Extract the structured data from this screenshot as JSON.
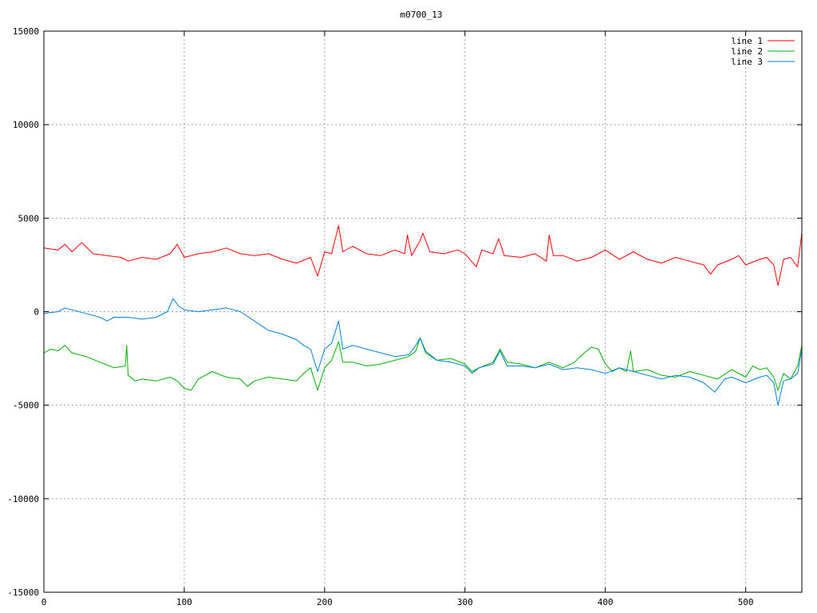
{
  "chart_data": {
    "type": "line",
    "title": "m0700_13",
    "xlabel": "",
    "ylabel": "",
    "xlim": [
      0,
      540
    ],
    "ylim": [
      -15000,
      15000
    ],
    "xticks": [
      0,
      100,
      200,
      300,
      400,
      500
    ],
    "yticks": [
      -15000,
      -10000,
      -5000,
      0,
      5000,
      10000,
      15000
    ],
    "grid": true,
    "legend_position": "top-right",
    "series": [
      {
        "name": "line 1",
        "color": "#ff0000",
        "points": [
          [
            0,
            3400
          ],
          [
            10,
            3300
          ],
          [
            15,
            3600
          ],
          [
            20,
            3200
          ],
          [
            27,
            3700
          ],
          [
            35,
            3100
          ],
          [
            45,
            3000
          ],
          [
            55,
            2900
          ],
          [
            60,
            2700
          ],
          [
            70,
            2900
          ],
          [
            80,
            2800
          ],
          [
            90,
            3100
          ],
          [
            95,
            3600
          ],
          [
            100,
            2900
          ],
          [
            110,
            3100
          ],
          [
            120,
            3200
          ],
          [
            130,
            3400
          ],
          [
            140,
            3100
          ],
          [
            150,
            3000
          ],
          [
            160,
            3100
          ],
          [
            170,
            2800
          ],
          [
            180,
            2600
          ],
          [
            190,
            2900
          ],
          [
            195,
            1900
          ],
          [
            200,
            3200
          ],
          [
            205,
            3100
          ],
          [
            210,
            4600
          ],
          [
            213,
            3200
          ],
          [
            220,
            3500
          ],
          [
            230,
            3100
          ],
          [
            240,
            3000
          ],
          [
            250,
            3300
          ],
          [
            257,
            3100
          ],
          [
            259,
            4100
          ],
          [
            262,
            3000
          ],
          [
            268,
            3800
          ],
          [
            270,
            4200
          ],
          [
            275,
            3200
          ],
          [
            285,
            3100
          ],
          [
            295,
            3300
          ],
          [
            300,
            3100
          ],
          [
            308,
            2400
          ],
          [
            312,
            3300
          ],
          [
            320,
            3100
          ],
          [
            324,
            3900
          ],
          [
            328,
            3000
          ],
          [
            340,
            2900
          ],
          [
            350,
            3100
          ],
          [
            358,
            2700
          ],
          [
            360,
            4100
          ],
          [
            363,
            3000
          ],
          [
            370,
            3000
          ],
          [
            380,
            2700
          ],
          [
            390,
            2900
          ],
          [
            400,
            3300
          ],
          [
            410,
            2800
          ],
          [
            420,
            3200
          ],
          [
            430,
            2800
          ],
          [
            440,
            2600
          ],
          [
            450,
            2900
          ],
          [
            460,
            2700
          ],
          [
            470,
            2500
          ],
          [
            475,
            2000
          ],
          [
            480,
            2500
          ],
          [
            490,
            2800
          ],
          [
            495,
            3000
          ],
          [
            500,
            2500
          ],
          [
            510,
            2800
          ],
          [
            515,
            2900
          ],
          [
            520,
            2500
          ],
          [
            523,
            1400
          ],
          [
            527,
            2800
          ],
          [
            532,
            2900
          ],
          [
            537,
            2400
          ],
          [
            540,
            4200
          ]
        ]
      },
      {
        "name": "line 2",
        "color": "#00b000",
        "points": [
          [
            0,
            -2200
          ],
          [
            5,
            -2000
          ],
          [
            10,
            -2100
          ],
          [
            15,
            -1800
          ],
          [
            20,
            -2200
          ],
          [
            30,
            -2400
          ],
          [
            40,
            -2700
          ],
          [
            50,
            -3000
          ],
          [
            58,
            -2900
          ],
          [
            59,
            -1800
          ],
          [
            60,
            -3400
          ],
          [
            65,
            -3700
          ],
          [
            70,
            -3600
          ],
          [
            80,
            -3700
          ],
          [
            90,
            -3500
          ],
          [
            95,
            -3700
          ],
          [
            100,
            -4100
          ],
          [
            105,
            -4200
          ],
          [
            110,
            -3600
          ],
          [
            120,
            -3200
          ],
          [
            130,
            -3500
          ],
          [
            140,
            -3600
          ],
          [
            145,
            -4000
          ],
          [
            150,
            -3700
          ],
          [
            160,
            -3500
          ],
          [
            170,
            -3600
          ],
          [
            180,
            -3700
          ],
          [
            185,
            -3300
          ],
          [
            190,
            -3000
          ],
          [
            195,
            -4200
          ],
          [
            200,
            -3000
          ],
          [
            205,
            -2600
          ],
          [
            210,
            -1600
          ],
          [
            213,
            -2700
          ],
          [
            220,
            -2700
          ],
          [
            230,
            -2900
          ],
          [
            240,
            -2800
          ],
          [
            250,
            -2600
          ],
          [
            260,
            -2400
          ],
          [
            265,
            -2100
          ],
          [
            268,
            -1400
          ],
          [
            272,
            -2200
          ],
          [
            280,
            -2600
          ],
          [
            290,
            -2500
          ],
          [
            300,
            -2800
          ],
          [
            305,
            -3200
          ],
          [
            310,
            -3000
          ],
          [
            320,
            -2700
          ],
          [
            325,
            -2000
          ],
          [
            330,
            -2700
          ],
          [
            340,
            -2800
          ],
          [
            350,
            -3000
          ],
          [
            360,
            -2700
          ],
          [
            370,
            -3000
          ],
          [
            378,
            -2700
          ],
          [
            385,
            -2200
          ],
          [
            390,
            -1900
          ],
          [
            395,
            -2000
          ],
          [
            400,
            -2800
          ],
          [
            405,
            -3200
          ],
          [
            410,
            -3000
          ],
          [
            415,
            -3200
          ],
          [
            418,
            -2100
          ],
          [
            420,
            -3200
          ],
          [
            430,
            -3100
          ],
          [
            440,
            -3400
          ],
          [
            450,
            -3500
          ],
          [
            460,
            -3200
          ],
          [
            470,
            -3400
          ],
          [
            480,
            -3600
          ],
          [
            490,
            -3100
          ],
          [
            500,
            -3500
          ],
          [
            505,
            -2900
          ],
          [
            510,
            -3100
          ],
          [
            515,
            -3000
          ],
          [
            520,
            -3500
          ],
          [
            523,
            -4200
          ],
          [
            527,
            -3300
          ],
          [
            532,
            -3600
          ],
          [
            537,
            -2900
          ],
          [
            540,
            -1800
          ]
        ]
      },
      {
        "name": "line 3",
        "color": "#0080e0",
        "points": [
          [
            0,
            -100
          ],
          [
            10,
            0
          ],
          [
            15,
            200
          ],
          [
            20,
            100
          ],
          [
            30,
            -100
          ],
          [
            40,
            -300
          ],
          [
            45,
            -500
          ],
          [
            50,
            -300
          ],
          [
            60,
            -300
          ],
          [
            70,
            -400
          ],
          [
            80,
            -300
          ],
          [
            88,
            0
          ],
          [
            92,
            700
          ],
          [
            96,
            300
          ],
          [
            100,
            100
          ],
          [
            110,
            0
          ],
          [
            120,
            100
          ],
          [
            130,
            200
          ],
          [
            140,
            0
          ],
          [
            150,
            -500
          ],
          [
            160,
            -1000
          ],
          [
            170,
            -1200
          ],
          [
            180,
            -1500
          ],
          [
            185,
            -1800
          ],
          [
            190,
            -2000
          ],
          [
            195,
            -3200
          ],
          [
            200,
            -2000
          ],
          [
            205,
            -1700
          ],
          [
            210,
            -500
          ],
          [
            213,
            -2000
          ],
          [
            220,
            -1800
          ],
          [
            230,
            -2000
          ],
          [
            240,
            -2200
          ],
          [
            250,
            -2400
          ],
          [
            260,
            -2300
          ],
          [
            265,
            -1800
          ],
          [
            268,
            -1400
          ],
          [
            272,
            -2100
          ],
          [
            280,
            -2600
          ],
          [
            290,
            -2700
          ],
          [
            300,
            -2900
          ],
          [
            305,
            -3300
          ],
          [
            310,
            -3000
          ],
          [
            320,
            -2800
          ],
          [
            325,
            -2100
          ],
          [
            330,
            -2900
          ],
          [
            340,
            -2900
          ],
          [
            350,
            -3000
          ],
          [
            360,
            -2800
          ],
          [
            370,
            -3100
          ],
          [
            380,
            -3000
          ],
          [
            390,
            -3100
          ],
          [
            400,
            -3300
          ],
          [
            410,
            -3000
          ],
          [
            420,
            -3200
          ],
          [
            430,
            -3400
          ],
          [
            440,
            -3600
          ],
          [
            450,
            -3400
          ],
          [
            460,
            -3500
          ],
          [
            470,
            -3800
          ],
          [
            478,
            -4300
          ],
          [
            485,
            -3600
          ],
          [
            490,
            -3500
          ],
          [
            500,
            -3800
          ],
          [
            510,
            -3500
          ],
          [
            515,
            -3400
          ],
          [
            520,
            -3800
          ],
          [
            523,
            -5000
          ],
          [
            527,
            -3700
          ],
          [
            532,
            -3600
          ],
          [
            537,
            -3300
          ],
          [
            540,
            -2000
          ]
        ]
      }
    ]
  }
}
